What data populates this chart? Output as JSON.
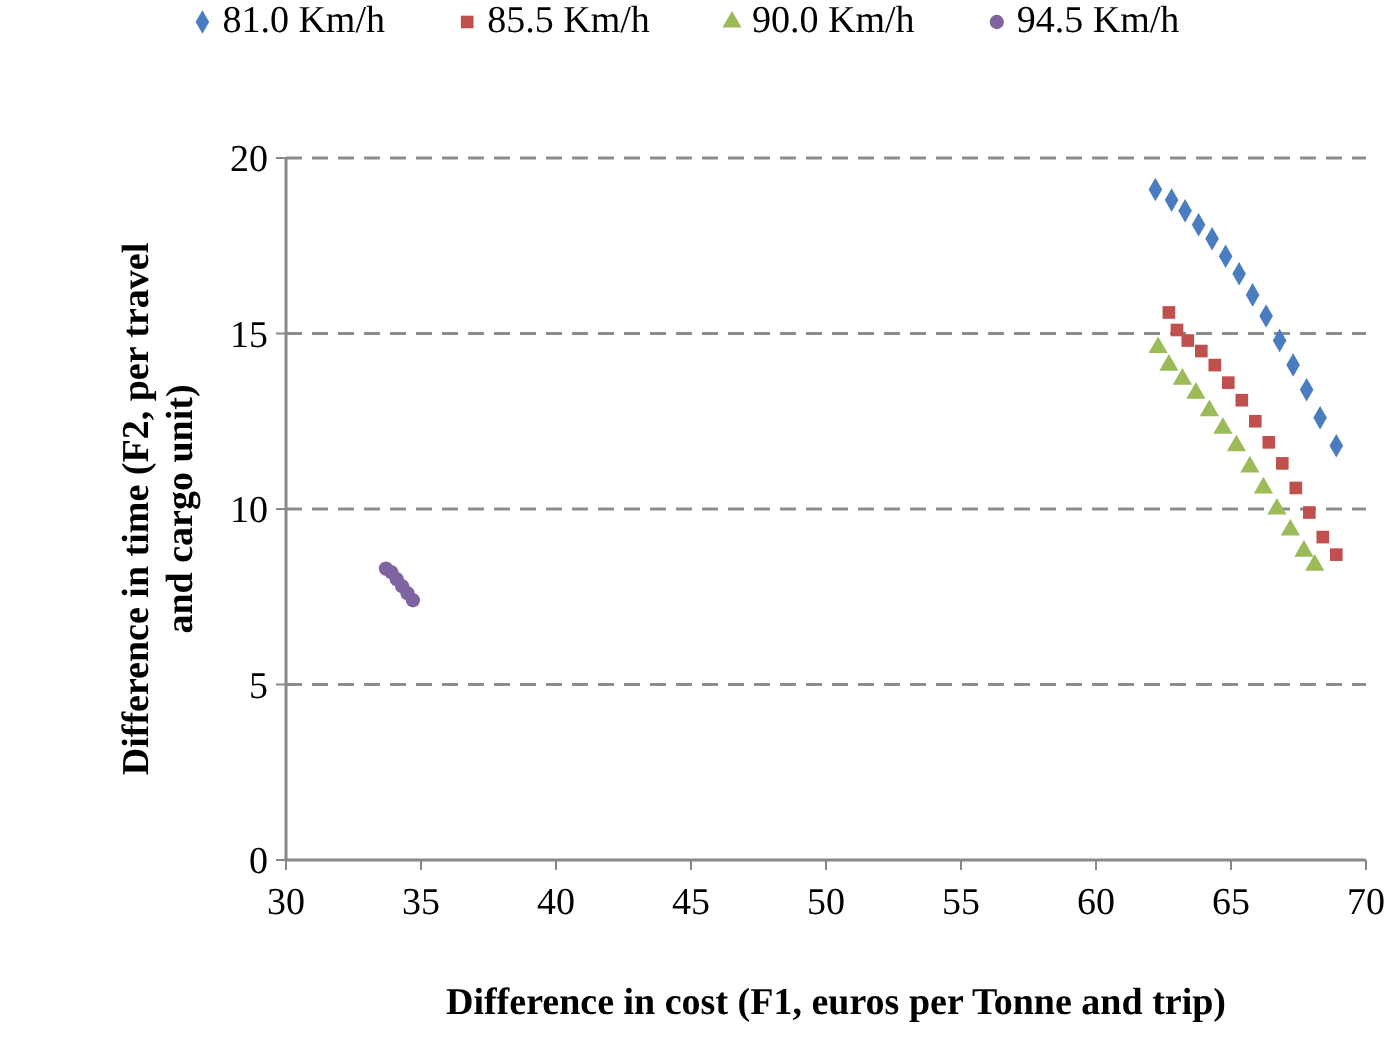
{
  "chart_data": {
    "type": "scatter",
    "xlabel": "Difference in cost (F1, euros per Tonne and trip)",
    "ylabel": "Difference in time (F2, per travel\nand cargo unit)",
    "xlim": [
      30,
      70
    ],
    "xticks": [
      30,
      35,
      40,
      45,
      50,
      55,
      60,
      65,
      70
    ],
    "ylim": [
      0,
      20
    ],
    "yticks": [
      0,
      5,
      10,
      15,
      20
    ],
    "grid": "y",
    "legend": "top",
    "series": [
      {
        "name": "81.0 Km/h",
        "color": "#4a7dc0",
        "marker": "diamond",
        "x": [
          62.2,
          62.8,
          63.3,
          63.8,
          64.3,
          64.8,
          65.3,
          65.8,
          66.3,
          66.8,
          67.3,
          67.8,
          68.3,
          68.9
        ],
        "values": [
          19.1,
          18.8,
          18.5,
          18.1,
          17.7,
          17.2,
          16.7,
          16.1,
          15.5,
          14.8,
          14.1,
          13.4,
          12.6,
          11.8
        ]
      },
      {
        "name": "85.5 Km/h",
        "color": "#c0504d",
        "marker": "square",
        "x": [
          62.7,
          63.0,
          63.4,
          63.9,
          64.4,
          64.9,
          65.4,
          65.9,
          66.4,
          66.9,
          67.4,
          67.9,
          68.4,
          68.9
        ],
        "values": [
          15.6,
          15.1,
          14.8,
          14.5,
          14.1,
          13.6,
          13.1,
          12.5,
          11.9,
          11.3,
          10.6,
          9.9,
          9.2,
          8.7
        ]
      },
      {
        "name": "90.0 Km/h",
        "color": "#9bbb59",
        "marker": "triangle",
        "x": [
          62.3,
          62.7,
          63.2,
          63.7,
          64.2,
          64.7,
          65.2,
          65.7,
          66.2,
          66.7,
          67.2,
          67.7,
          68.1
        ],
        "values": [
          14.6,
          14.1,
          13.7,
          13.3,
          12.8,
          12.3,
          11.8,
          11.2,
          10.6,
          10.0,
          9.4,
          8.8,
          8.4
        ]
      },
      {
        "name": "94.5 Km/h",
        "color": "#8064a2",
        "marker": "circle",
        "x": [
          33.7,
          33.9,
          34.1,
          34.3,
          34.5,
          34.7
        ],
        "values": [
          8.3,
          8.2,
          8.0,
          7.8,
          7.6,
          7.4
        ]
      }
    ]
  }
}
